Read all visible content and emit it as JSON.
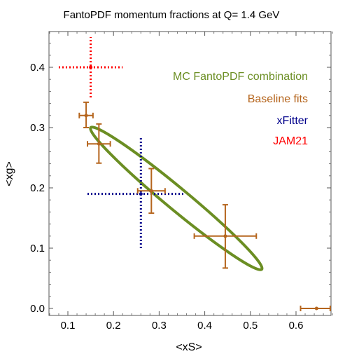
{
  "chart_data": {
    "type": "scatter",
    "title": "FantoPDF momentum fractions at Q= 1.4 GeV",
    "xlabel": "<xS>",
    "ylabel": "<xg>",
    "xlim": [
      0.05,
      0.7
    ],
    "ylim": [
      -0.01,
      0.455
    ],
    "xticks": [
      0.1,
      0.2,
      0.3,
      0.4,
      0.5,
      0.6
    ],
    "xtick_labels": [
      "0.1",
      "0.2",
      "0.3",
      "0.4",
      "0.5",
      "0.6"
    ],
    "yticks": [
      0.0,
      0.1,
      0.2,
      0.3,
      0.4
    ],
    "ytick_labels": [
      "0.0",
      "0.1",
      "0.2",
      "0.3",
      "0.4"
    ],
    "legend_position": "top-right",
    "grid": false,
    "series": [
      {
        "name": "MC FantoPDF combination",
        "kind": "ellipse",
        "color": "#6b8e23",
        "ellipse": {
          "cx": 0.337,
          "cy": 0.182,
          "endpoints": [
            [
              0.15,
              0.3
            ],
            [
              0.525,
              0.065
            ]
          ],
          "minor_half_width": 0.024
        }
      },
      {
        "name": "Baseline fits",
        "kind": "errorbar",
        "color": "#b5651d",
        "points": [
          {
            "x": 0.14,
            "y": 0.32,
            "xerr": [
              0.015,
              0.015
            ],
            "yerr": [
              0.02,
              0.022
            ]
          },
          {
            "x": 0.168,
            "y": 0.273,
            "xerr": [
              0.025,
              0.025
            ],
            "yerr": [
              0.032,
              0.033
            ]
          },
          {
            "x": 0.283,
            "y": 0.195,
            "xerr": [
              0.03,
              0.03
            ],
            "yerr": [
              0.037,
              0.037
            ]
          },
          {
            "x": 0.445,
            "y": 0.12,
            "xerr": [
              0.068,
              0.068
            ],
            "yerr": [
              0.053,
              0.052
            ]
          },
          {
            "x": 0.645,
            "y": 0.0,
            "xerr": [
              0.035,
              0.03
            ],
            "yerr": [
              0,
              0
            ]
          }
        ]
      },
      {
        "name": "xFitter",
        "kind": "errorbar-dotted",
        "color": "#00008b",
        "points": [
          {
            "x": 0.26,
            "y": 0.19,
            "xerr": [
              0.117,
              0.093
            ],
            "yerr": [
              0.09,
              0.093
            ]
          }
        ]
      },
      {
        "name": "JAM21",
        "kind": "errorbar-dotted",
        "color": "#ff0000",
        "points": [
          {
            "x": 0.15,
            "y": 0.4,
            "xerr": [
              0.07,
              0.07
            ],
            "yerr": [
              0.05,
              0.05
            ]
          }
        ]
      }
    ]
  }
}
